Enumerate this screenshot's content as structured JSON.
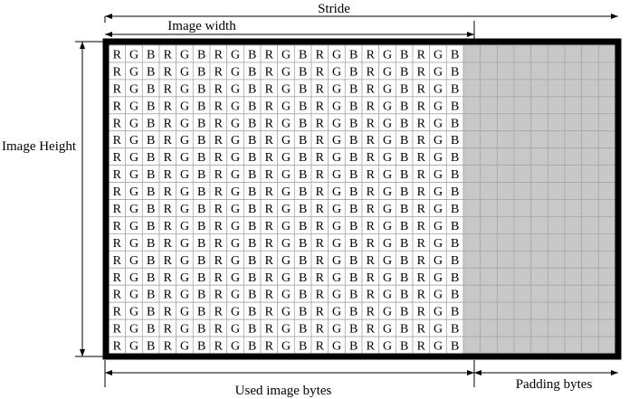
{
  "labels": {
    "stride": "Stride",
    "image_width": "Image width",
    "image_height": "Image Height",
    "used_image_bytes": "Used image bytes",
    "padding_bytes": "Padding bytes"
  },
  "grid": {
    "rows": 18,
    "data_columns": 21,
    "padding_columns": 9,
    "channel_pattern": [
      "R",
      "G",
      "B"
    ]
  },
  "colors": {
    "border": "#000000",
    "data_cell_fill": "#ffffff",
    "padding_cell_fill": "#c8c8c8",
    "grid_line": "#a8a8a8",
    "text": "#000000"
  }
}
